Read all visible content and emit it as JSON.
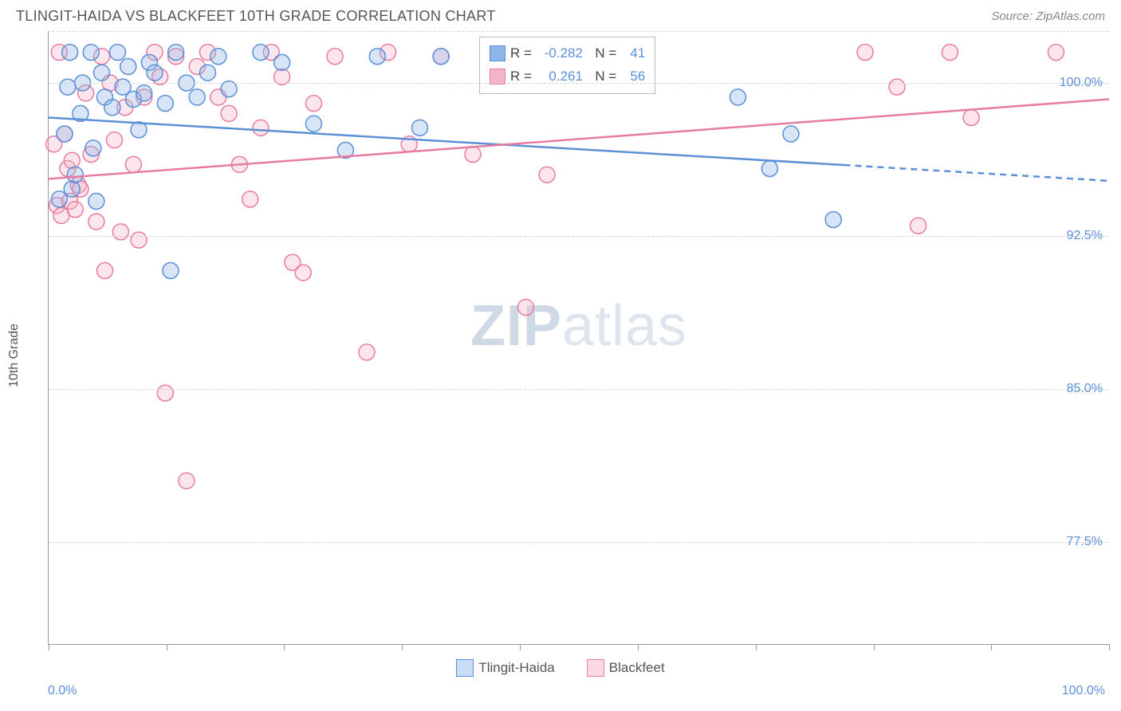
{
  "chart": {
    "type": "scatter-with-regression",
    "title": "TLINGIT-HAIDA VS BLACKFEET 10TH GRADE CORRELATION CHART",
    "source": "Source: ZipAtlas.com",
    "watermark_bold": "ZIP",
    "watermark_light": "atlas",
    "ylabel": "10th Grade",
    "background_color": "#ffffff",
    "grid_color": "#d5d5d5",
    "axis_color": "#999999",
    "label_color": "#5b8fd6",
    "x_range": [
      0,
      100
    ],
    "y_range": [
      72.5,
      102.5
    ],
    "x_ticks": [
      0,
      11.1,
      22.2,
      33.3,
      44.4,
      55.6,
      66.7,
      77.8,
      88.9,
      100
    ],
    "x_tick_labels": {
      "min": "0.0%",
      "max": "100.0%"
    },
    "y_ticks": [
      77.5,
      85.0,
      92.5,
      100.0
    ],
    "y_tick_labels": [
      "77.5%",
      "85.0%",
      "92.5%",
      "100.0%"
    ],
    "point_radius": 10,
    "line_width": 2.5,
    "series": [
      {
        "name": "Tlingit-Haida",
        "color_fill": "#8db5e8",
        "color_stroke": "#5b8fd6",
        "R": "-0.282",
        "N": "41",
        "regression": {
          "x1": 0,
          "y1": 98.3,
          "x2": 100,
          "y2": 95.2,
          "solid_until_x": 75
        },
        "points": [
          [
            1,
            94.3
          ],
          [
            1.5,
            97.5
          ],
          [
            1.8,
            99.8
          ],
          [
            2,
            101.5
          ],
          [
            2.2,
            94.8
          ],
          [
            2.5,
            95.5
          ],
          [
            3,
            98.5
          ],
          [
            3.2,
            100.0
          ],
          [
            4,
            101.5
          ],
          [
            4.2,
            96.8
          ],
          [
            4.5,
            94.2
          ],
          [
            5,
            100.5
          ],
          [
            5.3,
            99.3
          ],
          [
            6,
            98.8
          ],
          [
            6.5,
            101.5
          ],
          [
            7,
            99.8
          ],
          [
            7.5,
            100.8
          ],
          [
            8,
            99.2
          ],
          [
            8.5,
            97.7
          ],
          [
            9,
            99.5
          ],
          [
            9.5,
            101.0
          ],
          [
            10,
            100.5
          ],
          [
            11,
            99.0
          ],
          [
            11.5,
            90.8
          ],
          [
            12,
            101.5
          ],
          [
            13,
            100.0
          ],
          [
            14,
            99.3
          ],
          [
            15,
            100.5
          ],
          [
            16,
            101.3
          ],
          [
            17,
            99.7
          ],
          [
            20,
            101.5
          ],
          [
            22,
            101.0
          ],
          [
            25,
            98.0
          ],
          [
            28,
            96.7
          ],
          [
            31,
            101.3
          ],
          [
            35,
            97.8
          ],
          [
            37,
            101.3
          ],
          [
            65,
            99.3
          ],
          [
            68,
            95.8
          ],
          [
            70,
            97.5
          ],
          [
            74,
            93.3
          ]
        ]
      },
      {
        "name": "Blackfeet",
        "color_fill": "#f5b5c8",
        "color_stroke": "#e87ba0",
        "R": "0.261",
        "N": "56",
        "regression": {
          "x1": 0,
          "y1": 95.3,
          "x2": 100,
          "y2": 99.2,
          "solid_until_x": 100
        },
        "points": [
          [
            0.5,
            97.0
          ],
          [
            0.8,
            94.0
          ],
          [
            1,
            101.5
          ],
          [
            1.2,
            93.5
          ],
          [
            1.5,
            97.5
          ],
          [
            1.8,
            95.8
          ],
          [
            2,
            94.2
          ],
          [
            2.2,
            96.2
          ],
          [
            2.5,
            93.8
          ],
          [
            2.8,
            95.0
          ],
          [
            3,
            94.8
          ],
          [
            3.5,
            99.5
          ],
          [
            4,
            96.5
          ],
          [
            4.5,
            93.2
          ],
          [
            5,
            101.3
          ],
          [
            5.3,
            90.8
          ],
          [
            5.8,
            100.0
          ],
          [
            6.2,
            97.2
          ],
          [
            6.8,
            92.7
          ],
          [
            7.2,
            98.8
          ],
          [
            8,
            96.0
          ],
          [
            8.5,
            92.3
          ],
          [
            9,
            99.3
          ],
          [
            10,
            101.5
          ],
          [
            10.5,
            100.3
          ],
          [
            11,
            84.8
          ],
          [
            12,
            101.3
          ],
          [
            13,
            80.5
          ],
          [
            14,
            100.8
          ],
          [
            15,
            101.5
          ],
          [
            16,
            99.3
          ],
          [
            17,
            98.5
          ],
          [
            18,
            96.0
          ],
          [
            19,
            94.3
          ],
          [
            20,
            97.8
          ],
          [
            21,
            101.5
          ],
          [
            22,
            100.3
          ],
          [
            23,
            91.2
          ],
          [
            24,
            90.7
          ],
          [
            25,
            99.0
          ],
          [
            27,
            101.3
          ],
          [
            30,
            86.8
          ],
          [
            32,
            101.5
          ],
          [
            34,
            97.0
          ],
          [
            37,
            101.3
          ],
          [
            40,
            96.5
          ],
          [
            42,
            100.5
          ],
          [
            43,
            101.5
          ],
          [
            45,
            89.0
          ],
          [
            47,
            95.5
          ],
          [
            77,
            101.5
          ],
          [
            80,
            99.8
          ],
          [
            82,
            93.0
          ],
          [
            85,
            101.5
          ],
          [
            87,
            98.3
          ],
          [
            95,
            101.5
          ]
        ]
      }
    ],
    "bottom_legend": [
      {
        "name": "Tlingit-Haida",
        "fill": "#c9ddf5",
        "stroke": "#5b8fd6"
      },
      {
        "name": "Blackfeet",
        "fill": "#fad9e3",
        "stroke": "#e87ba0"
      }
    ]
  }
}
